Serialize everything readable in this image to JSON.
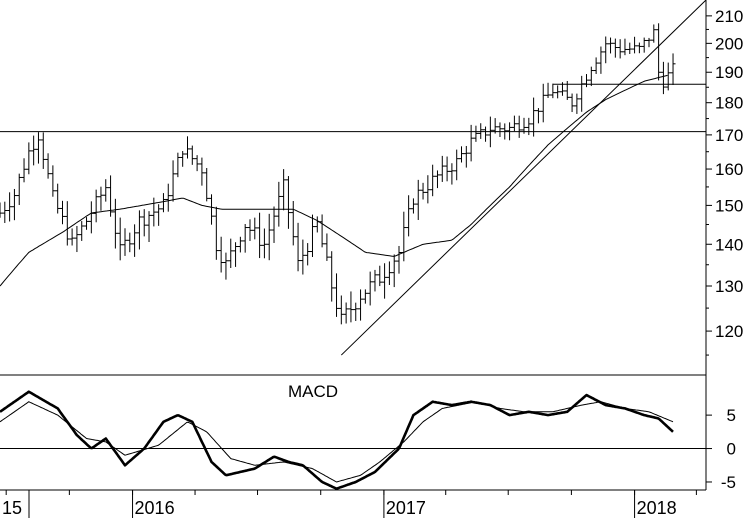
{
  "chart_data": [
    {
      "type": "ohlc",
      "panel": "price",
      "frequency": "weekly",
      "yscale": "log",
      "ylim": [
        111,
        216
      ],
      "yticks": [
        120,
        130,
        140,
        150,
        160,
        170,
        180,
        190,
        200,
        210
      ],
      "xlim": [
        "2015-06-22",
        "2018-04-15"
      ],
      "grid": false,
      "series": [
        {
          "kind": "ohlc",
          "start": "2015-06-22",
          "anchors": [
            [
              "2015-06-22",
              148
            ],
            [
              "2015-07-13",
              153
            ],
            [
              "2015-08-03",
              165
            ],
            [
              "2015-08-17",
              170
            ],
            [
              "2015-09-07",
              152
            ],
            [
              "2015-10-05",
              140
            ],
            [
              "2015-10-26",
              146
            ],
            [
              "2015-11-23",
              155
            ],
            [
              "2015-12-14",
              138
            ],
            [
              "2016-01-11",
              146
            ],
            [
              "2016-02-15",
              150
            ],
            [
              "2016-03-14",
              166
            ],
            [
              "2016-04-11",
              160
            ],
            [
              "2016-05-02",
              140
            ],
            [
              "2016-05-16",
              135
            ],
            [
              "2016-06-13",
              145
            ],
            [
              "2016-07-11",
              140
            ],
            [
              "2016-08-08",
              155
            ],
            [
              "2016-08-29",
              135
            ],
            [
              "2016-09-26",
              145
            ],
            [
              "2016-10-17",
              130
            ],
            [
              "2016-10-31",
              122
            ],
            [
              "2016-11-28",
              128
            ],
            [
              "2016-12-26",
              132
            ],
            [
              "2017-01-23",
              138
            ],
            [
              "2017-02-13",
              152
            ],
            [
              "2017-03-20",
              158
            ],
            [
              "2017-04-17",
              162
            ],
            [
              "2017-05-08",
              168
            ],
            [
              "2017-06-05",
              172
            ],
            [
              "2017-07-03",
              172
            ],
            [
              "2017-07-31",
              175
            ],
            [
              "2017-09-04",
              184
            ],
            [
              "2017-10-02",
              180
            ],
            [
              "2017-10-30",
              192
            ],
            [
              "2017-11-20",
              200
            ],
            [
              "2017-12-11",
              198
            ],
            [
              "2018-01-08",
              198
            ],
            [
              "2018-01-29",
              204
            ],
            [
              "2018-02-05",
              190
            ],
            [
              "2018-02-12",
              187
            ],
            [
              "2018-02-26",
              191
            ]
          ]
        },
        {
          "kind": "moving-average",
          "anchors": [
            [
              "2015-06-22",
              130
            ],
            [
              "2015-08-03",
              138
            ],
            [
              "2015-09-21",
              143
            ],
            [
              "2015-11-02",
              148
            ],
            [
              "2015-12-14",
              149
            ],
            [
              "2016-02-15",
              151
            ],
            [
              "2016-03-14",
              152
            ],
            [
              "2016-04-11",
              150
            ],
            [
              "2016-05-09",
              149
            ],
            [
              "2016-07-04",
              149
            ],
            [
              "2016-08-22",
              149
            ],
            [
              "2016-09-26",
              146
            ],
            [
              "2016-10-31",
              142
            ],
            [
              "2016-12-05",
              138
            ],
            [
              "2017-01-16",
              137
            ],
            [
              "2017-02-27",
              140
            ],
            [
              "2017-04-10",
              141
            ],
            [
              "2017-05-08",
              145
            ],
            [
              "2017-06-05",
              150
            ],
            [
              "2017-07-03",
              155
            ],
            [
              "2017-07-31",
              161
            ],
            [
              "2017-08-28",
              167
            ],
            [
              "2017-09-25",
              172
            ],
            [
              "2017-10-23",
              177
            ],
            [
              "2017-11-20",
              181
            ],
            [
              "2017-12-18",
              184
            ],
            [
              "2018-01-15",
              187
            ],
            [
              "2018-02-19",
              189
            ]
          ]
        }
      ],
      "trendlines": [
        {
          "kind": "trend",
          "from": [
            "2016-10-31",
            115
          ],
          "to": [
            "2018-04-15",
            216
          ]
        },
        {
          "kind": "horizontal",
          "y": 171,
          "from": "2015-06-22",
          "to": "2018-04-15"
        },
        {
          "kind": "horizontal",
          "y": 186,
          "from": "2017-09-04",
          "to": "2018-04-15"
        }
      ]
    },
    {
      "type": "line",
      "panel": "indicator",
      "title": "MACD",
      "ylim": [
        -6.2,
        11
      ],
      "yticks": [
        -5,
        0,
        5
      ],
      "zero_line": true,
      "series": [
        {
          "kind": "macd",
          "anchors": [
            [
              "2015-06-22",
              5.5
            ],
            [
              "2015-08-03",
              8.5
            ],
            [
              "2015-09-14",
              6
            ],
            [
              "2015-10-12",
              2
            ],
            [
              "2015-11-02",
              0
            ],
            [
              "2015-11-23",
              1.5
            ],
            [
              "2015-12-21",
              -2.5
            ],
            [
              "2016-01-18",
              0
            ],
            [
              "2016-02-15",
              4
            ],
            [
              "2016-03-07",
              5
            ],
            [
              "2016-03-28",
              4
            ],
            [
              "2016-04-25",
              -2
            ],
            [
              "2016-05-16",
              -4
            ],
            [
              "2016-06-06",
              -3.5
            ],
            [
              "2016-06-27",
              -3
            ],
            [
              "2016-07-25",
              -1.2
            ],
            [
              "2016-08-15",
              -2
            ],
            [
              "2016-09-05",
              -2.5
            ],
            [
              "2016-10-03",
              -5
            ],
            [
              "2016-10-24",
              -6
            ],
            [
              "2016-11-21",
              -5
            ],
            [
              "2016-12-19",
              -3.5
            ],
            [
              "2017-01-23",
              0
            ],
            [
              "2017-02-13",
              5
            ],
            [
              "2017-03-13",
              7
            ],
            [
              "2017-04-10",
              6.5
            ],
            [
              "2017-05-08",
              7
            ],
            [
              "2017-06-05",
              6.5
            ],
            [
              "2017-07-03",
              5
            ],
            [
              "2017-07-31",
              5.5
            ],
            [
              "2017-08-28",
              5
            ],
            [
              "2017-09-25",
              5.5
            ],
            [
              "2017-10-23",
              8
            ],
            [
              "2017-11-20",
              6.5
            ],
            [
              "2017-12-18",
              6
            ],
            [
              "2018-01-15",
              5
            ],
            [
              "2018-02-05",
              4.5
            ],
            [
              "2018-02-26",
              2.5
            ]
          ]
        },
        {
          "kind": "signal",
          "anchors": [
            [
              "2015-06-22",
              4
            ],
            [
              "2015-08-03",
              7
            ],
            [
              "2015-09-14",
              5
            ],
            [
              "2015-10-26",
              1.5
            ],
            [
              "2015-11-23",
              1
            ],
            [
              "2015-12-21",
              -1
            ],
            [
              "2016-02-08",
              0.5
            ],
            [
              "2016-03-21",
              4
            ],
            [
              "2016-04-18",
              2.5
            ],
            [
              "2016-05-23",
              -1.5
            ],
            [
              "2016-06-27",
              -2.5
            ],
            [
              "2016-08-08",
              -2
            ],
            [
              "2016-09-19",
              -3
            ],
            [
              "2016-10-24",
              -5
            ],
            [
              "2016-11-28",
              -4
            ],
            [
              "2016-12-26",
              -2
            ],
            [
              "2017-01-30",
              1
            ],
            [
              "2017-02-27",
              4
            ],
            [
              "2017-03-27",
              6
            ],
            [
              "2017-05-15",
              7
            ],
            [
              "2017-06-19",
              6
            ],
            [
              "2017-07-24",
              5.5
            ],
            [
              "2017-09-04",
              5.5
            ],
            [
              "2017-10-16",
              6.5
            ],
            [
              "2017-11-13",
              7
            ],
            [
              "2017-12-18",
              6
            ],
            [
              "2018-01-22",
              5.5
            ],
            [
              "2018-02-26",
              4
            ]
          ]
        }
      ]
    },
    {
      "type": "axis",
      "xticks": [
        {
          "date": "2015-06-22",
          "label": "15"
        },
        {
          "date": "2016-01-01",
          "label": "2016"
        },
        {
          "date": "2017-01-01",
          "label": "2017"
        },
        {
          "date": "2018-01-01",
          "label": "2018"
        }
      ]
    }
  ]
}
